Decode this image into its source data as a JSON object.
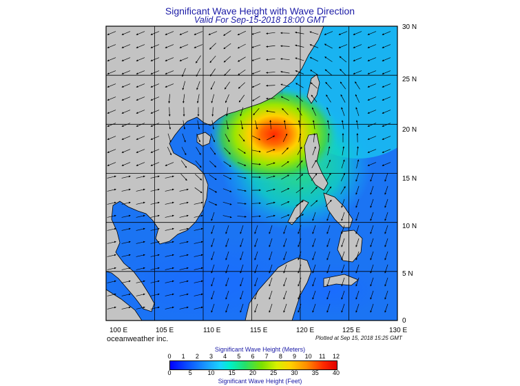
{
  "header": {
    "title": "Significant Wave Height with Wave Direction",
    "subtitle": "Valid For Sep-15-2018 18:00 GMT"
  },
  "map": {
    "lon_labels": [
      "100 E",
      "105 E",
      "110 E",
      "115 E",
      "120 E",
      "125 E",
      "130 E"
    ],
    "lat_labels": [
      "30 N",
      "25 N",
      "20 N",
      "15 N",
      "10 N",
      "5 N",
      "0"
    ],
    "lon_range": [
      100,
      130
    ],
    "lat_range": [
      0,
      30
    ],
    "storm_center": {
      "lon": 116.5,
      "lat": 20.0
    },
    "colors": {
      "land": "#c3c3c3",
      "frame": "#000000",
      "arrow": "#000000"
    }
  },
  "footer": {
    "credit": "oceanweather inc.",
    "plotted": "Plotted at Sep 15, 2018 15:25 GMT"
  },
  "colorbar": {
    "top_title": "Significant Wave Height (Meters)",
    "bottom_title": "Significant Wave Height (Feet)",
    "meters": [
      "0",
      "1",
      "2",
      "3",
      "4",
      "5",
      "6",
      "7",
      "8",
      "9",
      "10",
      "11",
      "12"
    ],
    "feet": [
      "0",
      "5",
      "10",
      "15",
      "20",
      "25",
      "30",
      "35",
      "40"
    ],
    "colors": [
      "#0000ff",
      "#1a9cff",
      "#19d3ff",
      "#25e06a",
      "#d8f000",
      "#ff8c00",
      "#e00000"
    ]
  }
}
